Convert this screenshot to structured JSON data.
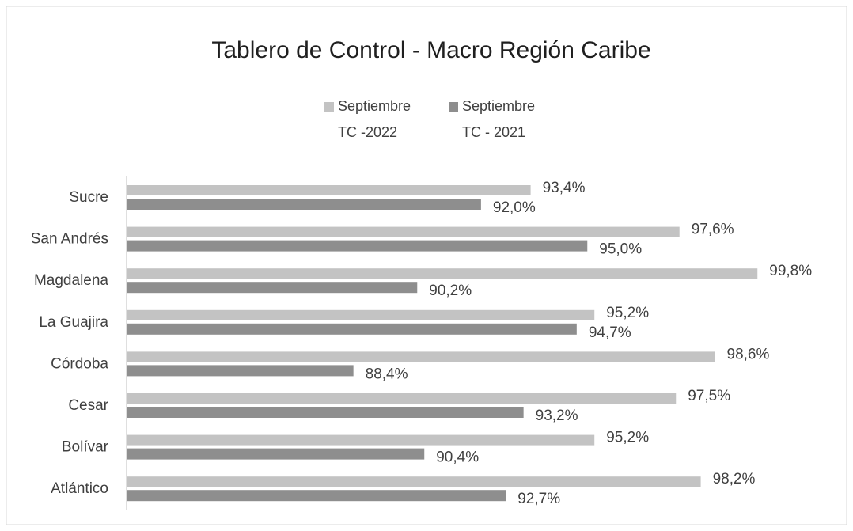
{
  "chart_data": {
    "type": "bar",
    "orientation": "horizontal",
    "title": "Tablero de Control - Macro Región Caribe",
    "categories": [
      "Sucre",
      "San Andrés",
      "Magdalena",
      "La Guajira",
      "Córdoba",
      "Cesar",
      "Bolívar",
      "Atlántico"
    ],
    "series": [
      {
        "name": "Septiembre TC -2022",
        "color": "#c3c3c3",
        "values": [
          93.4,
          97.6,
          99.8,
          95.2,
          98.6,
          97.5,
          95.2,
          98.2
        ],
        "value_labels": [
          "93,4%",
          "97,6%",
          "99,8%",
          "95,2%",
          "98,6%",
          "97,5%",
          "95,2%",
          "98,2%"
        ]
      },
      {
        "name": "Septiembre TC - 2021",
        "color": "#8e8e8e",
        "values": [
          92.0,
          95.0,
          90.2,
          94.7,
          88.4,
          93.2,
          90.4,
          92.7
        ],
        "value_labels": [
          "92,0%",
          "95,0%",
          "90,2%",
          "94,7%",
          "88,4%",
          "93,2%",
          "90,4%",
          "92,7%"
        ]
      }
    ],
    "xlim": [
      82,
      101
    ]
  }
}
